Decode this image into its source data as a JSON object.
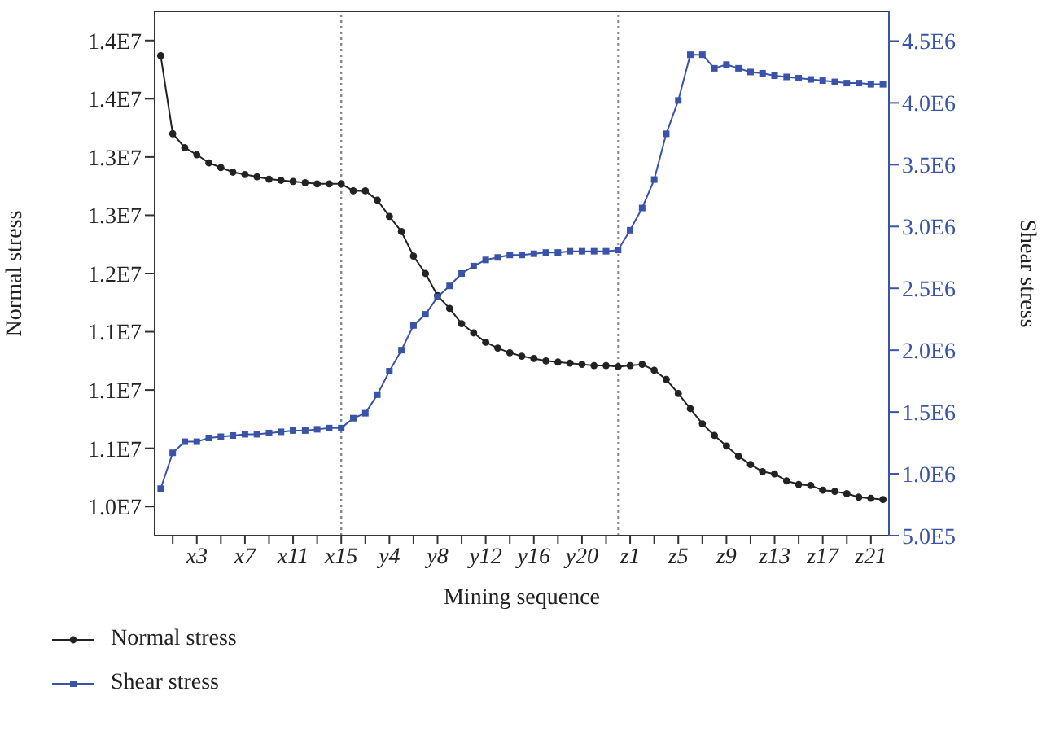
{
  "chart_data": {
    "type": "line",
    "xlabel": "Mining sequence",
    "ylabel": "Normal stress",
    "y2label": "Shear stress",
    "categories": [
      null,
      null,
      null,
      "x3",
      null,
      null,
      null,
      "x7",
      null,
      null,
      null,
      "x11",
      null,
      null,
      null,
      "x15",
      null,
      null,
      null,
      "y4",
      null,
      null,
      null,
      "y8",
      null,
      null,
      null,
      "y12",
      null,
      null,
      null,
      "y16",
      null,
      null,
      null,
      "y20",
      null,
      null,
      null,
      "z1",
      null,
      null,
      null,
      "z5",
      null,
      null,
      null,
      "z9",
      null,
      null,
      null,
      "z13",
      null,
      null,
      null,
      "z17",
      null,
      null,
      null,
      "z21",
      null
    ],
    "series": [
      {
        "name": "Normal stress",
        "color": "#222222",
        "marker": "circle",
        "values": [
          13870000,
          13200000,
          13080000,
          13020000,
          12950000,
          12910000,
          12870000,
          12850000,
          12830000,
          12810000,
          12800000,
          12790000,
          12780000,
          12770000,
          12770000,
          12770000,
          12710000,
          12710000,
          12630000,
          12490000,
          12360000,
          12150000,
          12000000,
          11810000,
          11700000,
          11570000,
          11490000,
          11410000,
          11360000,
          11320000,
          11290000,
          11270000,
          11250000,
          11240000,
          11230000,
          11220000,
          11210000,
          11210000,
          11200000,
          11210000,
          11220000,
          11170000,
          11090000,
          10970000,
          10840000,
          10710000,
          10610000,
          10520000,
          10430000,
          10360000,
          10300000,
          10280000,
          10220000,
          10190000,
          10180000,
          10140000,
          10130000,
          10110000,
          10080000,
          10070000,
          10060000
        ]
      },
      {
        "name": "Shear stress",
        "color": "#3853a8",
        "marker": "square",
        "axis": "y2",
        "values": [
          880000,
          1170000,
          1260000,
          1260000,
          1290000,
          1300000,
          1310000,
          1320000,
          1320000,
          1330000,
          1340000,
          1350000,
          1350000,
          1360000,
          1370000,
          1370000,
          1450000,
          1490000,
          1640000,
          1830000,
          2000000,
          2200000,
          2290000,
          2430000,
          2520000,
          2620000,
          2680000,
          2730000,
          2750000,
          2770000,
          2770000,
          2780000,
          2790000,
          2790000,
          2800000,
          2800000,
          2800000,
          2800000,
          2810000,
          2970000,
          3150000,
          3380000,
          3750000,
          4020000,
          4390000,
          4390000,
          4280000,
          4310000,
          4280000,
          4250000,
          4240000,
          4220000,
          4210000,
          4200000,
          4190000,
          4180000,
          4170000,
          4160000,
          4160000,
          4150000,
          4150000
        ]
      }
    ],
    "ylim": [
      9750000,
      14250000
    ],
    "yticks": [
      {
        "value": 10000000,
        "label": "1.0E7"
      },
      {
        "value": 10500000,
        "label": "1.1E7"
      },
      {
        "value": 11000000,
        "label": "1.1E7"
      },
      {
        "value": 11500000,
        "label": "1.1E7"
      },
      {
        "value": 12000000,
        "label": "1.2E7"
      },
      {
        "value": 12500000,
        "label": "1.3E7"
      },
      {
        "value": 13000000,
        "label": "1.3E7"
      },
      {
        "value": 13500000,
        "label": "1.4E7"
      },
      {
        "value": 14000000,
        "label": "1.4E7"
      }
    ],
    "y2lim": [
      500000,
      4740000
    ],
    "y2ticks": [
      {
        "value": 500000,
        "label": "5.0E5"
      },
      {
        "value": 1000000,
        "label": "1.0E6"
      },
      {
        "value": 1500000,
        "label": "1.5E6"
      },
      {
        "value": 2000000,
        "label": "2.0E6"
      },
      {
        "value": 2500000,
        "label": "2.5E6"
      },
      {
        "value": 3000000,
        "label": "3.0E6"
      },
      {
        "value": 3500000,
        "label": "3.5E6"
      },
      {
        "value": 4000000,
        "label": "4.0E6"
      },
      {
        "value": 4500000,
        "label": "4.5E6"
      }
    ],
    "ref_lines": [
      {
        "axis": "x",
        "value": "x15",
        "color": "#888888",
        "line_style": "dotted"
      }
    ],
    "grid": false,
    "legend": "bottom left"
  }
}
